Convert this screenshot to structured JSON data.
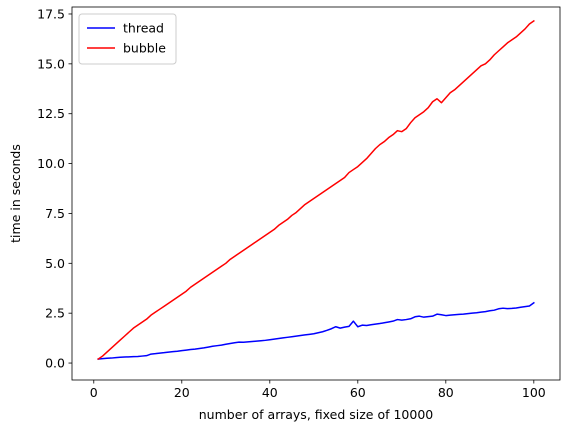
{
  "chart_data": {
    "type": "line",
    "title": "",
    "xlabel": "number of arrays, fixed size of 10000",
    "ylabel": "time in seconds",
    "xlim": [
      -4.95,
      105.95
    ],
    "ylim": [
      -0.85,
      17.85
    ],
    "xticks": [
      0,
      20,
      40,
      60,
      80,
      100
    ],
    "xtick_labels": [
      "0",
      "20",
      "40",
      "60",
      "80",
      "100"
    ],
    "yticks": [
      0,
      2.5,
      5,
      7.5,
      10,
      12.5,
      15,
      17.5
    ],
    "ytick_labels": [
      "0.0",
      "2.5",
      "5.0",
      "7.5",
      "10.0",
      "12.5",
      "15.0",
      "17.5"
    ],
    "grid": false,
    "legend_position": "upper-left",
    "series": [
      {
        "name": "thread",
        "color": "#0000ff",
        "x": [
          1,
          2,
          3,
          4,
          5,
          6,
          7,
          8,
          9,
          10,
          11,
          12,
          13,
          14,
          15,
          16,
          17,
          18,
          19,
          20,
          21,
          22,
          23,
          24,
          25,
          26,
          27,
          28,
          29,
          30,
          31,
          32,
          33,
          34,
          35,
          36,
          37,
          38,
          39,
          40,
          41,
          42,
          43,
          44,
          45,
          46,
          47,
          48,
          49,
          50,
          51,
          52,
          53,
          54,
          55,
          56,
          57,
          58,
          59,
          60,
          61,
          62,
          63,
          64,
          65,
          66,
          67,
          68,
          69,
          70,
          71,
          72,
          73,
          74,
          75,
          76,
          77,
          78,
          79,
          80,
          81,
          82,
          83,
          84,
          85,
          86,
          87,
          88,
          89,
          90,
          91,
          92,
          93,
          94,
          95,
          96,
          97,
          98,
          99,
          100
        ],
        "values": [
          0.2,
          0.22,
          0.24,
          0.25,
          0.27,
          0.29,
          0.3,
          0.31,
          0.32,
          0.33,
          0.35,
          0.37,
          0.45,
          0.47,
          0.5,
          0.52,
          0.55,
          0.57,
          0.59,
          0.62,
          0.65,
          0.68,
          0.7,
          0.73,
          0.76,
          0.8,
          0.84,
          0.87,
          0.9,
          0.94,
          0.98,
          1.02,
          1.05,
          1.04,
          1.06,
          1.08,
          1.1,
          1.12,
          1.14,
          1.17,
          1.2,
          1.23,
          1.26,
          1.29,
          1.32,
          1.35,
          1.38,
          1.41,
          1.44,
          1.47,
          1.52,
          1.57,
          1.64,
          1.72,
          1.82,
          1.75,
          1.8,
          1.84,
          2.1,
          1.82,
          1.9,
          1.88,
          1.92,
          1.95,
          1.98,
          2.02,
          2.06,
          2.1,
          2.18,
          2.15,
          2.18,
          2.22,
          2.32,
          2.35,
          2.3,
          2.33,
          2.35,
          2.45,
          2.42,
          2.38,
          2.4,
          2.42,
          2.44,
          2.45,
          2.48,
          2.5,
          2.52,
          2.55,
          2.58,
          2.62,
          2.65,
          2.72,
          2.75,
          2.73,
          2.74,
          2.76,
          2.8,
          2.83,
          2.86,
          3.02
        ]
      },
      {
        "name": "bubble",
        "color": "#ff0000",
        "x": [
          1,
          2,
          3,
          4,
          5,
          6,
          7,
          8,
          9,
          10,
          11,
          12,
          13,
          14,
          15,
          16,
          17,
          18,
          19,
          20,
          21,
          22,
          23,
          24,
          25,
          26,
          27,
          28,
          29,
          30,
          31,
          32,
          33,
          34,
          35,
          36,
          37,
          38,
          39,
          40,
          41,
          42,
          43,
          44,
          45,
          46,
          47,
          48,
          49,
          50,
          51,
          52,
          53,
          54,
          55,
          56,
          57,
          58,
          59,
          60,
          61,
          62,
          63,
          64,
          65,
          66,
          67,
          68,
          69,
          70,
          71,
          72,
          73,
          74,
          75,
          76,
          77,
          78,
          79,
          80,
          81,
          82,
          83,
          84,
          85,
          86,
          87,
          88,
          89,
          90,
          91,
          92,
          93,
          94,
          95,
          96,
          97,
          98,
          99,
          100
        ],
        "values": [
          0.2,
          0.35,
          0.55,
          0.75,
          0.95,
          1.15,
          1.35,
          1.55,
          1.75,
          1.9,
          2.05,
          2.2,
          2.4,
          2.55,
          2.7,
          2.85,
          3.0,
          3.15,
          3.3,
          3.45,
          3.6,
          3.8,
          3.95,
          4.1,
          4.25,
          4.4,
          4.55,
          4.7,
          4.85,
          5.0,
          5.2,
          5.35,
          5.5,
          5.65,
          5.8,
          5.95,
          6.1,
          6.25,
          6.4,
          6.55,
          6.7,
          6.9,
          7.05,
          7.2,
          7.4,
          7.55,
          7.75,
          7.95,
          8.1,
          8.25,
          8.4,
          8.55,
          8.7,
          8.85,
          9.0,
          9.15,
          9.3,
          9.55,
          9.7,
          9.85,
          10.05,
          10.25,
          10.5,
          10.75,
          10.95,
          11.1,
          11.3,
          11.45,
          11.65,
          11.6,
          11.75,
          12.05,
          12.3,
          12.45,
          12.6,
          12.8,
          13.1,
          13.25,
          13.05,
          13.3,
          13.55,
          13.7,
          13.9,
          14.1,
          14.3,
          14.5,
          14.7,
          14.9,
          15.0,
          15.2,
          15.45,
          15.65,
          15.85,
          16.05,
          16.2,
          16.35,
          16.55,
          16.75,
          17.0,
          17.15
        ]
      }
    ]
  }
}
